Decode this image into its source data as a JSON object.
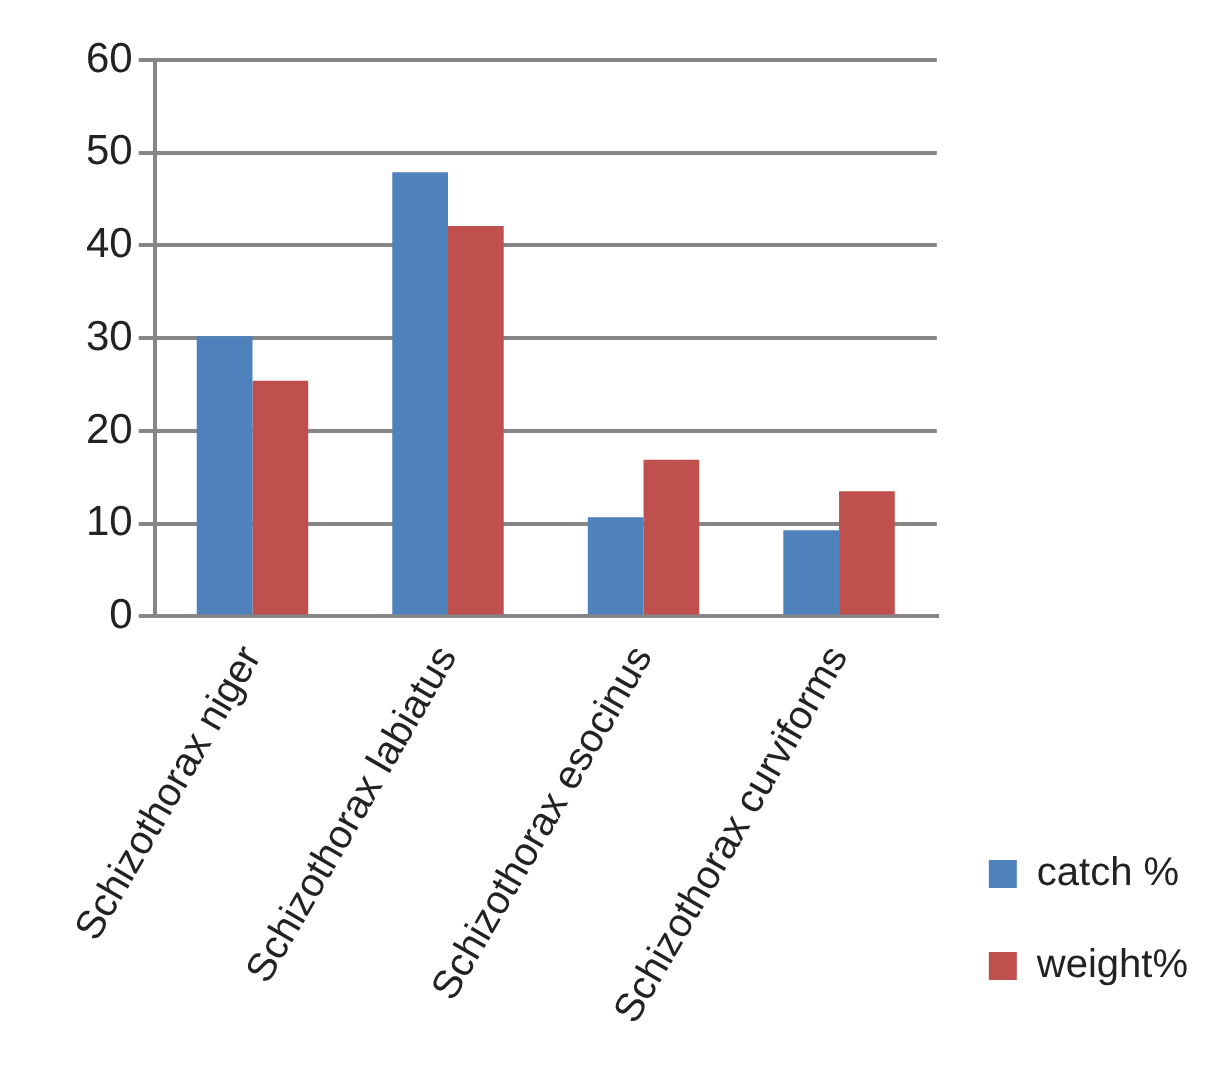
{
  "chart_data": {
    "type": "bar",
    "categories": [
      "Schizothorax niger",
      "Schizothorax labiatus",
      "Schizothorax esocinus",
      "Schizothorax curviforms"
    ],
    "series": [
      {
        "name": "catch %",
        "color": "#4f81bd",
        "values": [
          30.2,
          47.9,
          10.7,
          9.3
        ]
      },
      {
        "name": "weight%",
        "color": "#c0504d",
        "values": [
          25.4,
          42.1,
          16.9,
          13.5
        ]
      }
    ],
    "ylim": [
      0,
      60
    ],
    "yticks": [
      0,
      10,
      20,
      30,
      40,
      50,
      60
    ],
    "grid": "y",
    "legend": "bottom right"
  }
}
